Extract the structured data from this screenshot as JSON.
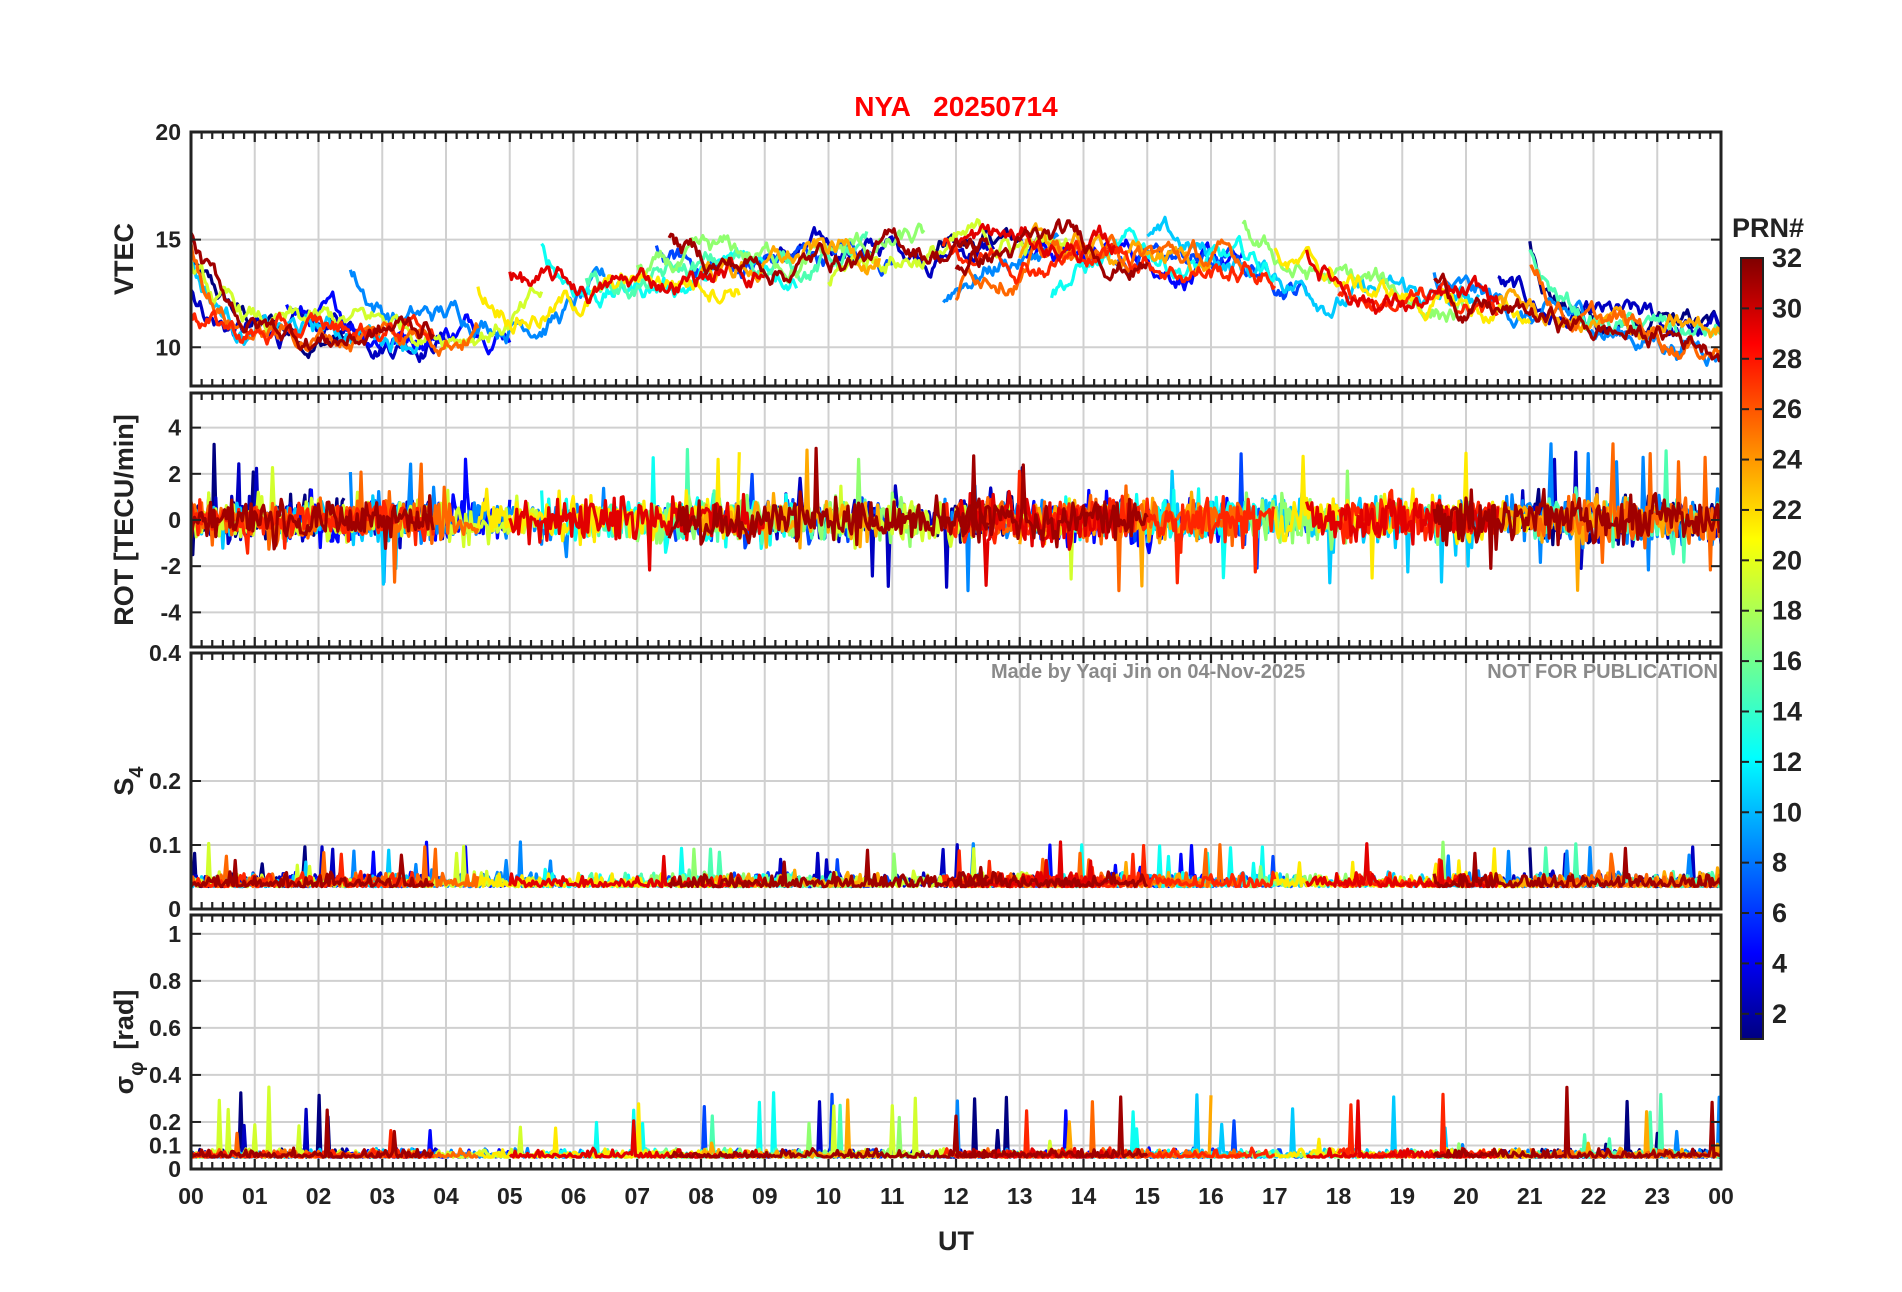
{
  "chart_data": {
    "type": "line",
    "title": "NYA   20250714",
    "watermark": [
      "Made by Yaqi Jin on 04-Nov-2025",
      "NOT FOR PUBLICATION"
    ],
    "xlabel": "UT",
    "x_ticks": [
      "00",
      "01",
      "02",
      "03",
      "04",
      "05",
      "06",
      "07",
      "08",
      "09",
      "10",
      "11",
      "12",
      "13",
      "14",
      "15",
      "16",
      "17",
      "18",
      "19",
      "20",
      "21",
      "22",
      "23",
      "00"
    ],
    "xlim": [
      0,
      24
    ],
    "colorbar": {
      "label": "PRN#",
      "ticks": [
        "2",
        "4",
        "6",
        "8",
        "10",
        "12",
        "14",
        "16",
        "18",
        "20",
        "22",
        "24",
        "26",
        "28",
        "30",
        "32"
      ],
      "range": [
        1,
        32
      ],
      "colormap": "jet"
    },
    "panels": [
      {
        "id": "vtec",
        "ylabel": "VTEC",
        "ylim": [
          8.2,
          20
        ],
        "y_ticks": [
          "10",
          "15",
          "20"
        ],
        "y_tick_values": [
          10,
          15,
          20
        ],
        "typical_range": [
          9,
          18
        ]
      },
      {
        "id": "rot",
        "ylabel": "ROT [TECU/min]",
        "ylim": [
          -5.5,
          5.5
        ],
        "y_ticks": [
          "-4",
          "-2",
          "0",
          "2",
          "4"
        ],
        "y_tick_values": [
          -4,
          -2,
          0,
          2,
          4
        ],
        "typical_range": [
          -3,
          5
        ]
      },
      {
        "id": "s4",
        "ylabel": "S",
        "ylabel_sub": "4",
        "ylim": [
          0,
          0.4
        ],
        "y_ticks": [
          "0",
          "0.1",
          "0.2",
          "0.4"
        ],
        "y_tick_values": [
          0,
          0.1,
          0.2,
          0.4
        ],
        "typical_range": [
          0.02,
          0.11
        ]
      },
      {
        "id": "sigma",
        "ylabel": "σ",
        "ylabel_sub": "φ",
        "ylabel_unit": "[rad]",
        "ylim": [
          0,
          1.08
        ],
        "y_ticks": [
          "0",
          "0.1",
          "0.2",
          "0.4",
          "0.6",
          "0.8",
          "1"
        ],
        "y_tick_values": [
          0,
          0.1,
          0.2,
          0.4,
          0.6,
          0.8,
          1
        ],
        "typical_range": [
          0.03,
          0.48
        ]
      }
    ],
    "series": [
      {
        "prn": 1,
        "segments": [
          [
            0,
            2.4
          ],
          [
            11.6,
            13.4
          ],
          [
            21.0,
            24.0
          ]
        ]
      },
      {
        "prn": 3,
        "segments": [
          [
            0,
            4.0
          ],
          [
            9.0,
            12.6
          ],
          [
            20.5,
            24.0
          ]
        ]
      },
      {
        "prn": 5,
        "segments": [
          [
            1.5,
            5.0
          ],
          [
            13.0,
            16.5
          ]
        ]
      },
      {
        "prn": 7,
        "segments": [
          [
            7.3,
            11.0
          ],
          [
            14.5,
            17.5
          ]
        ]
      },
      {
        "prn": 9,
        "segments": [
          [
            2.5,
            6.5
          ],
          [
            11.8,
            13.6
          ],
          [
            19.5,
            24.0
          ]
        ]
      },
      {
        "prn": 11,
        "segments": [
          [
            0,
            3.6
          ],
          [
            15.0,
            20.2
          ]
        ]
      },
      {
        "prn": 13,
        "segments": [
          [
            5.5,
            9.5
          ],
          [
            13.5,
            17.0
          ]
        ]
      },
      {
        "prn": 15,
        "segments": [
          [
            6.2,
            10.6
          ],
          [
            21.0,
            24.0
          ]
        ]
      },
      {
        "prn": 17,
        "segments": [
          [
            7.0,
            11.5
          ],
          [
            16.5,
            20.0
          ]
        ]
      },
      {
        "prn": 19,
        "segments": [
          [
            0,
            5.5
          ],
          [
            10.0,
            14.0
          ]
        ]
      },
      {
        "prn": 21,
        "segments": [
          [
            4.5,
            8.6
          ],
          [
            17.0,
            21.0
          ]
        ]
      },
      {
        "prn": 23,
        "segments": [
          [
            8.0,
            10.8
          ],
          [
            13.0,
            16.0
          ],
          [
            20.5,
            24.0
          ]
        ]
      },
      {
        "prn": 25,
        "segments": [
          [
            0,
            4.5
          ],
          [
            12.0,
            16.5
          ],
          [
            21.0,
            24.0
          ]
        ]
      },
      {
        "prn": 27,
        "segments": [
          [
            0,
            3.8
          ],
          [
            11.8,
            17.0
          ],
          [
            18.0,
            20.5
          ]
        ]
      },
      {
        "prn": 29,
        "segments": [
          [
            5.0,
            9.0
          ],
          [
            12.0,
            14.5
          ],
          [
            17.5,
            20.5
          ]
        ]
      },
      {
        "prn": 31,
        "segments": [
          [
            0,
            3.8
          ],
          [
            7.5,
            12.5
          ],
          [
            12.0,
            15.0
          ],
          [
            19.5,
            24.0
          ]
        ]
      }
    ]
  }
}
